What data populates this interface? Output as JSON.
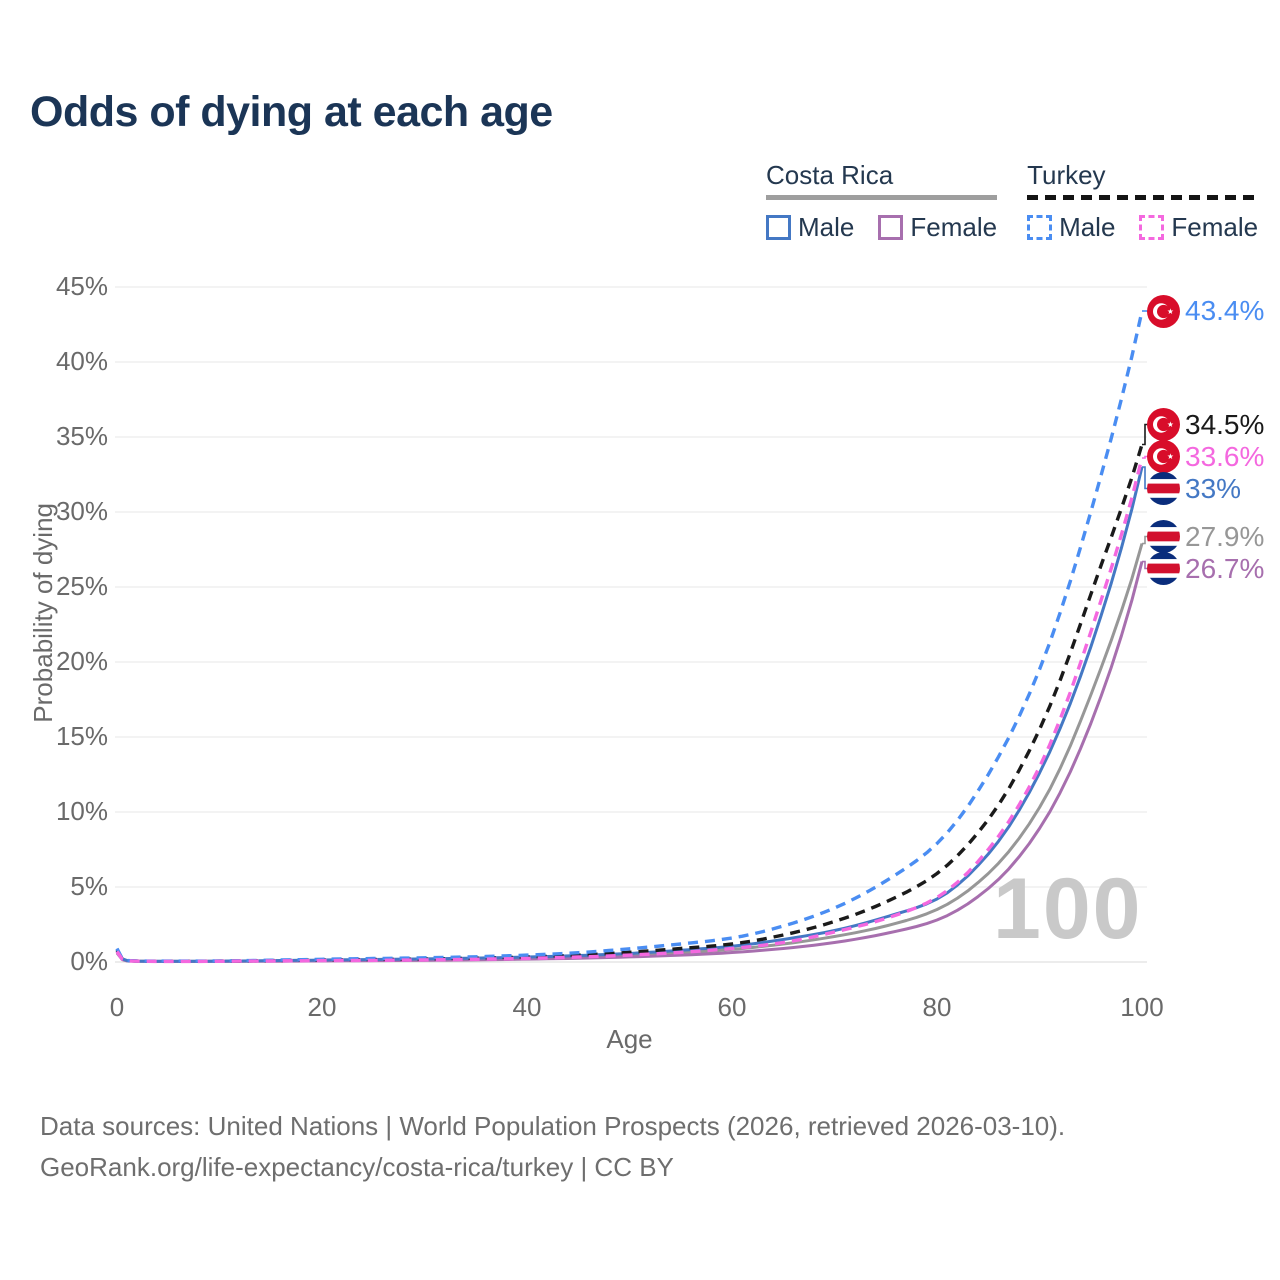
{
  "header": {
    "title": "Odds of dying at each age"
  },
  "legend": {
    "costa_rica": {
      "label": "Costa Rica",
      "male_label": "Male",
      "female_label": "Female"
    },
    "turkey": {
      "label": "Turkey",
      "male_label": "Male",
      "female_label": "Female"
    }
  },
  "colors": {
    "title_text": "#1b3556",
    "axis_text": "#6a6a6a",
    "grid": "#ececec",
    "baseline": "#e0e0e0",
    "watermark_text": "#c9c9c9",
    "footer_text": "#6e6e6e",
    "legend_text": "#24384f",
    "turkey_flag_red": "#d80d2a",
    "costa_rica_flag_blue": "#0a2d7c",
    "costa_rica_flag_red": "#d2102e"
  },
  "footer": {
    "line1": "Data sources: United Nations | World Population Prospects (2026, retrieved 2026-03-10).",
    "line2": "GeoRank.org/life-expectancy/costa-rica/turkey | CC BY"
  },
  "chart_data": {
    "type": "line",
    "title": "Odds of dying at each age",
    "xlabel": "Age",
    "ylabel": "Probability of dying",
    "watermark": "100",
    "xlim": [
      0,
      100
    ],
    "ylim": [
      0,
      45
    ],
    "grid": true,
    "legend_position": "top-right",
    "x_ticks": [
      0,
      20,
      40,
      60,
      80,
      100
    ],
    "y_ticks": [
      {
        "value": 0,
        "label": "0%"
      },
      {
        "value": 5,
        "label": "5%"
      },
      {
        "value": 10,
        "label": "10%"
      },
      {
        "value": 15,
        "label": "15%"
      },
      {
        "value": 20,
        "label": "20%"
      },
      {
        "value": 25,
        "label": "25%"
      },
      {
        "value": 30,
        "label": "30%"
      },
      {
        "value": 35,
        "label": "35%"
      },
      {
        "value": 40,
        "label": "40%"
      },
      {
        "value": 45,
        "label": "45%"
      }
    ],
    "ages": [
      0,
      1,
      5,
      10,
      15,
      20,
      25,
      30,
      35,
      40,
      45,
      50,
      55,
      60,
      65,
      70,
      75,
      80,
      85,
      90,
      95,
      100
    ],
    "series": [
      {
        "name": "Turkey Male",
        "country": "Turkey",
        "sex": "Male",
        "flag": "turkey",
        "color": "#4a8df2",
        "dash": true,
        "end_label": "43.4%",
        "values": [
          0.9,
          0.1,
          0.06,
          0.07,
          0.12,
          0.18,
          0.23,
          0.28,
          0.35,
          0.46,
          0.62,
          0.88,
          1.2,
          1.6,
          2.4,
          3.6,
          5.4,
          7.9,
          12.5,
          19.5,
          30.0,
          43.4
        ]
      },
      {
        "name": "Turkey Both sexes",
        "country": "Turkey",
        "sex": "Both",
        "flag": "turkey",
        "color": "#1a1a1a",
        "dash": true,
        "end_label": "34.5%",
        "values": [
          0.8,
          0.09,
          0.05,
          0.06,
          0.09,
          0.13,
          0.17,
          0.2,
          0.26,
          0.34,
          0.46,
          0.65,
          0.9,
          1.2,
          1.8,
          2.7,
          4.0,
          5.9,
          9.5,
          15.5,
          24.5,
          34.5
        ]
      },
      {
        "name": "Turkey Female",
        "country": "Turkey",
        "sex": "Female",
        "flag": "turkey",
        "color": "#f468df",
        "dash": true,
        "end_label": "33.6%",
        "values": [
          0.7,
          0.08,
          0.04,
          0.05,
          0.07,
          0.09,
          0.11,
          0.14,
          0.18,
          0.24,
          0.33,
          0.46,
          0.64,
          0.9,
          1.3,
          2.0,
          2.9,
          4.3,
          7.5,
          13.0,
          22.0,
          33.6
        ]
      },
      {
        "name": "Costa Rica Male",
        "country": "Costa Rica",
        "sex": "Male",
        "flag": "costa-rica",
        "color": "#4478c4",
        "dash": false,
        "end_label": "33%",
        "values": [
          0.8,
          0.09,
          0.05,
          0.06,
          0.09,
          0.13,
          0.17,
          0.21,
          0.26,
          0.33,
          0.43,
          0.57,
          0.78,
          1.05,
          1.5,
          2.1,
          3.0,
          4.2,
          7.2,
          12.6,
          21.0,
          33.0
        ]
      },
      {
        "name": "Costa Rica Both sexes",
        "country": "Costa Rica",
        "sex": "Both",
        "flag": "costa-rica",
        "color": "#979797",
        "dash": false,
        "end_label": "27.9%",
        "values": [
          0.7,
          0.08,
          0.04,
          0.05,
          0.07,
          0.1,
          0.13,
          0.16,
          0.2,
          0.26,
          0.34,
          0.45,
          0.61,
          0.84,
          1.2,
          1.7,
          2.4,
          3.5,
          5.9,
          10.3,
          17.8,
          27.9
        ]
      },
      {
        "name": "Costa Rica Female",
        "country": "Costa Rica",
        "sex": "Female",
        "flag": "costa-rica",
        "color": "#a76fae",
        "dash": false,
        "end_label": "26.7%",
        "values": [
          0.6,
          0.07,
          0.035,
          0.04,
          0.05,
          0.07,
          0.09,
          0.11,
          0.14,
          0.19,
          0.25,
          0.34,
          0.46,
          0.63,
          0.9,
          1.3,
          1.9,
          2.8,
          4.9,
          8.9,
          15.9,
          26.7
        ]
      }
    ]
  }
}
